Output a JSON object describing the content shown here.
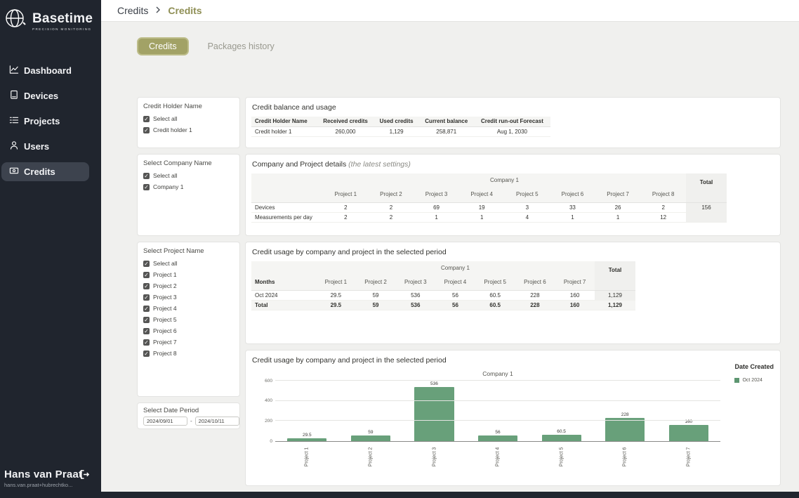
{
  "colors": {
    "accent_olive": "#a2a266",
    "breadcrumb_active": "#8f8f55",
    "sidebar_bg": "#20252e",
    "bar_green": "#68a07a"
  },
  "sidebar": {
    "logo_title": "Basetime",
    "logo_subtitle": "PRECISION MONITORING",
    "items": [
      {
        "label": "Dashboard",
        "icon": "line-chart-icon",
        "active": false
      },
      {
        "label": "Devices",
        "icon": "device-icon",
        "active": false
      },
      {
        "label": "Projects",
        "icon": "list-icon",
        "active": false
      },
      {
        "label": "Users",
        "icon": "user-icon",
        "active": false
      },
      {
        "label": "Credits",
        "icon": "banknote-icon",
        "active": true
      }
    ],
    "user_name": "Hans van Praat",
    "user_email": "hans.van.praat+hubrechtko..."
  },
  "breadcrumb": {
    "root": "Credits",
    "current": "Credits"
  },
  "tabs": {
    "credits": "Credits",
    "packages": "Packages history"
  },
  "filters": {
    "credit_holder": {
      "title": "Credit Holder Name",
      "options": [
        {
          "label": "Select all",
          "checked": true
        },
        {
          "label": "Credit holder 1",
          "checked": true
        }
      ]
    },
    "company": {
      "title": "Select Company Name",
      "options": [
        {
          "label": "Select all",
          "checked": true
        },
        {
          "label": "Company 1",
          "checked": true
        }
      ]
    },
    "project": {
      "title": "Select Project Name",
      "options": [
        {
          "label": "Select all",
          "checked": true
        },
        {
          "label": "Project 1",
          "checked": true
        },
        {
          "label": "Project 2",
          "checked": true
        },
        {
          "label": "Project 3",
          "checked": true
        },
        {
          "label": "Project 4",
          "checked": true
        },
        {
          "label": "Project 5",
          "checked": true
        },
        {
          "label": "Project 6",
          "checked": true
        },
        {
          "label": "Project 7",
          "checked": true
        },
        {
          "label": "Project 8",
          "checked": true
        }
      ]
    },
    "date_period": {
      "title": "Select Date Period",
      "from": "2024/09/01",
      "separator": "-",
      "to": "2024/10/11"
    }
  },
  "balance_table": {
    "title": "Credit balance and usage",
    "columns": [
      "Credit Holder Name",
      "Received credits",
      "Used credits",
      "Current balance",
      "Credit run-out Forecast"
    ],
    "rows": [
      [
        "Credit holder 1",
        "260,000",
        "1,129",
        "258,871",
        "Aug 1, 2030"
      ]
    ]
  },
  "details_table": {
    "title": "Company and Project details",
    "subtitle": "(the latest settings)",
    "group_header": "Company 1",
    "columns": [
      "Project 1",
      "Project 2",
      "Project 3",
      "Project 4",
      "Project 5",
      "Project 6",
      "Project 7",
      "Project 8"
    ],
    "total_label": "Total",
    "rows": [
      {
        "label": "Devices",
        "values": [
          "2",
          "2",
          "69",
          "19",
          "3",
          "33",
          "26",
          "2"
        ],
        "total": "156"
      },
      {
        "label": "Measurements per day",
        "values": [
          "2",
          "2",
          "1",
          "1",
          "4",
          "1",
          "1",
          "12"
        ],
        "total": ""
      }
    ]
  },
  "usage_table": {
    "title": "Credit usage by company and project in the selected period",
    "group_header": "Company 1",
    "row_header": "Months",
    "columns": [
      "Project 1",
      "Project 2",
      "Project 3",
      "Project 4",
      "Project 5",
      "Project 6",
      "Project 7"
    ],
    "total_label": "Total",
    "rows": [
      {
        "label": "Oct 2024",
        "values": [
          "29.5",
          "59",
          "536",
          "56",
          "60.5",
          "228",
          "160"
        ],
        "total": "1,129",
        "bold": false
      },
      {
        "label": "Total",
        "values": [
          "29.5",
          "59",
          "536",
          "56",
          "60.5",
          "228",
          "160"
        ],
        "total": "1,129",
        "bold": true
      }
    ]
  },
  "chart_data": {
    "type": "bar",
    "title": "Credit usage by company and project in the selected period",
    "chart_title": "Company 1",
    "categories": [
      "Project 1",
      "Project 2",
      "Project 3",
      "Project 4",
      "Project 5",
      "Project 6",
      "Project 7"
    ],
    "values": [
      29.5,
      59,
      536,
      56,
      60.5,
      228,
      160
    ],
    "value_labels": [
      "29.5",
      "59",
      "536",
      "56",
      "60.5",
      "228",
      "160"
    ],
    "ylim": [
      0,
      600
    ],
    "yticks": [
      0,
      200,
      400,
      600
    ],
    "grid": true,
    "bar_color": "#68a07a",
    "legend": {
      "position": "right",
      "title": "Date Created",
      "entries": [
        {
          "label": "Oct 2024",
          "color": "#5d9671"
        }
      ]
    }
  }
}
